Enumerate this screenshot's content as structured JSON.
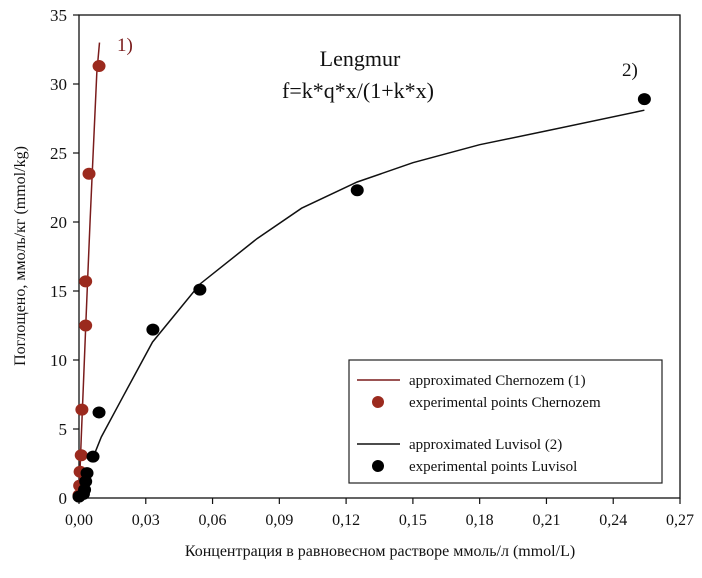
{
  "chart_data": {
    "type": "scatter",
    "title": "Lengmur",
    "subtitle": "f=k*q*x/(1+k*x)",
    "xlabel": "Концентрация в равновесном растворе ммоль/л (mmol/L)",
    "ylabel": "Поглощено, ммоль/кг (mmol/kg)",
    "xlim": [
      0,
      0.27
    ],
    "ylim": [
      0,
      35
    ],
    "xticks": [
      "0,00",
      "0,03",
      "0,06",
      "0,09",
      "0,12",
      "0,15",
      "0,18",
      "0,21",
      "0,24",
      "0,27"
    ],
    "yticks": [
      "0",
      "5",
      "10",
      "15",
      "20",
      "25",
      "30",
      "35"
    ],
    "grid": false,
    "legend_position": "bottom-right",
    "annotations": [
      "1)",
      "2)"
    ],
    "series": [
      {
        "name": "approximated Chernozem",
        "tag": "(1)",
        "kind": "line",
        "color": "#7a1c1c",
        "x": [
          0,
          0.001,
          0.002,
          0.003,
          0.004,
          0.005,
          0.006,
          0.007,
          0.008,
          0.0092
        ],
        "y": [
          0,
          4.27,
          8.4,
          12.4,
          16.3,
          20.1,
          23.8,
          27.3,
          30.8,
          33.0
        ]
      },
      {
        "name": "experimental points Chernozem",
        "kind": "points",
        "color": "#9b2a1e",
        "x": [
          0.0,
          0.0003,
          0.0005,
          0.001,
          0.0013,
          0.003,
          0.003,
          0.0045,
          0.009
        ],
        "y": [
          0.2,
          0.9,
          1.9,
          3.1,
          6.4,
          12.5,
          15.7,
          23.5,
          31.3
        ]
      },
      {
        "name": "approximated Luvisol",
        "tag": "(2)",
        "kind": "line",
        "color": "#111111",
        "x": [
          0.0063,
          0.01,
          0.02,
          0.033,
          0.0543,
          0.08,
          0.1,
          0.125,
          0.15,
          0.18,
          0.21,
          0.254
        ],
        "y": [
          2.92,
          4.42,
          7.41,
          11.3,
          15.5,
          18.8,
          21.0,
          22.9,
          24.3,
          25.6,
          26.6,
          28.1
        ]
      },
      {
        "name": "experimental points Luvisol",
        "kind": "points",
        "color": "#000000",
        "x": [
          0.0,
          0.002,
          0.0025,
          0.003,
          0.0036,
          0.0063,
          0.009,
          0.0332,
          0.0543,
          0.125,
          0.254
        ],
        "y": [
          0.1,
          0.3,
          0.6,
          1.2,
          1.8,
          3.0,
          6.2,
          12.2,
          15.1,
          22.3,
          28.9
        ]
      }
    ]
  }
}
